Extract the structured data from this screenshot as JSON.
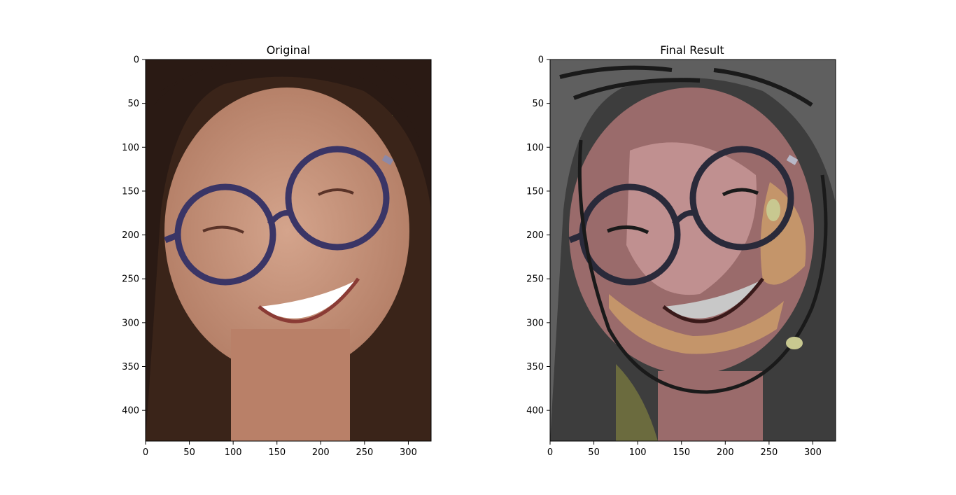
{
  "chart_data": [
    {
      "type": "image",
      "title": "Original",
      "xlim": [
        0,
        326
      ],
      "ylim": [
        435,
        0
      ],
      "xticks": [
        0,
        50,
        100,
        150,
        200,
        250,
        300
      ],
      "yticks": [
        0,
        50,
        100,
        150,
        200,
        250,
        300,
        350,
        400
      ],
      "grid": false,
      "colors": {
        "background": "#b0856b",
        "hair": "#2a1a14",
        "skin": "#c99780",
        "frame": "#3a3566",
        "accent": "#7a8a3a"
      }
    },
    {
      "type": "image",
      "title": "Final Result",
      "xlim": [
        0,
        326
      ],
      "ylim": [
        435,
        0
      ],
      "xticks": [
        0,
        50,
        100,
        150,
        200,
        250,
        300
      ],
      "yticks": [
        0,
        50,
        100,
        150,
        200,
        250,
        300,
        350,
        400
      ],
      "grid": false,
      "colors": {
        "background": "#3d3d3d",
        "hair": "#5f5f5f",
        "skin": "#9a6b6b",
        "highlight": "#c09090",
        "tan": "#c4956a",
        "olive": "#6b6b3e",
        "frame": "#2a2a3a"
      }
    }
  ]
}
